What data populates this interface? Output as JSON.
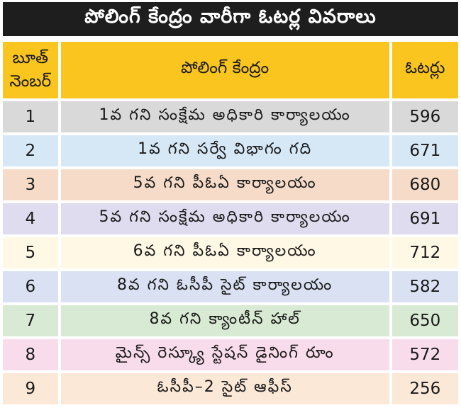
{
  "title": "పోలింగ్ కేంద్రం వారీగా ఓటర్ల వివరాలు",
  "header": {
    "booth_line1": "బూత్",
    "booth_line2": "నెంబర్",
    "center": "పోలింగ్ కేంద్రం",
    "voters": "ఓటర్లు"
  },
  "rows": [
    {
      "booth": "1",
      "center": "1వ గని సంక్షేమ అధికారి కార్యాలయం",
      "voters": "596",
      "color": "#d9d9d9"
    },
    {
      "booth": "2",
      "center": "1వ గని సర్వే విభాగం గది",
      "voters": "671",
      "color": "#d6e8f6"
    },
    {
      "booth": "3",
      "center": "5వ గని పీఓఏ కార్యాలయం",
      "voters": "680",
      "color": "#f6dcc8"
    },
    {
      "booth": "4",
      "center": "5వ గని సంక్షేమ అధికారి కార్యాలయం",
      "voters": "691",
      "color": "#e0dcef"
    },
    {
      "booth": "5",
      "center": "6వ గని పీఓఏ కార్యాలయం",
      "voters": "712",
      "color": "#fff8e4"
    },
    {
      "booth": "6",
      "center": "8వ గని ఓసీపీ సైట్ కార్యాలయం",
      "voters": "582",
      "color": "#d9e1f2"
    },
    {
      "booth": "7",
      "center": "8వ గని క్యాంటీన్ హాల్",
      "voters": "650",
      "color": "#d8ead3"
    },
    {
      "booth": "8",
      "center": "మైన్స్ రెస్క్యూ స్టేషన్ డైనింగ్ రూం",
      "voters": "572",
      "color": "#f9dceb"
    },
    {
      "booth": "9",
      "center": "ఓసీపీ–2 సైట్ ఆఫీస్",
      "voters": "256",
      "color": "#fbe8d6"
    }
  ]
}
